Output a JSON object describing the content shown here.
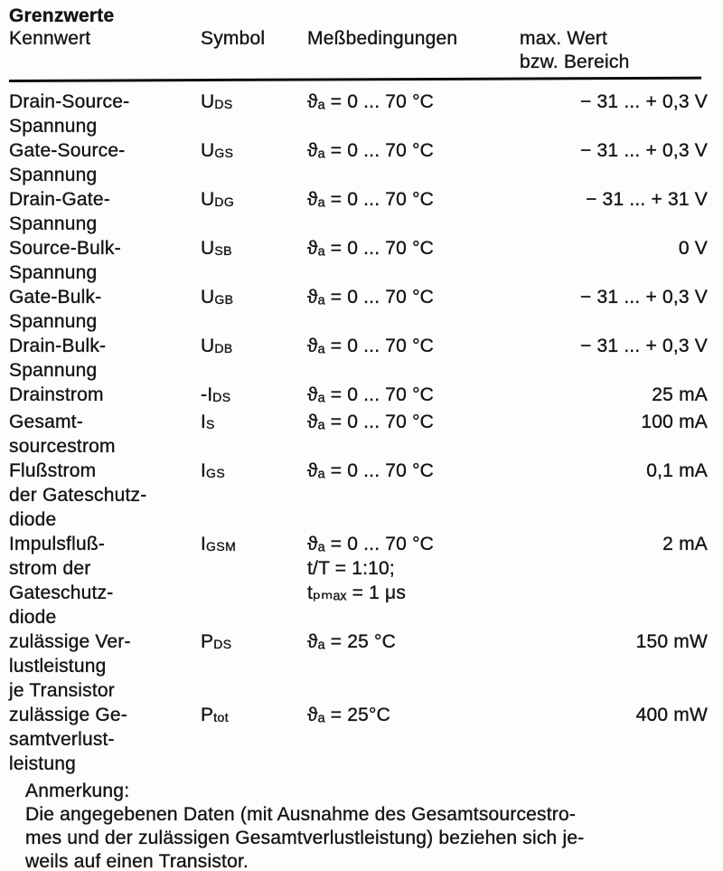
{
  "doc": {
    "title": "Grenzwerte",
    "header": {
      "kennwert": "Kennwert",
      "symbol": "Symbol",
      "conditions": "Meßbedingungen",
      "max_value": "max. Wert\nbzw. Bereich"
    },
    "table": {
      "rows": [
        {
          "name": "Drain-Source-\nSpannung",
          "symbol_main": "U",
          "symbol_sub": "DS",
          "conditions": "ϑₐ = 0 ... 70 °C",
          "value": "− 31 ... + 0,3 V"
        },
        {
          "name": "Gate-Source-\nSpannung",
          "symbol_main": "U",
          "symbol_sub": "GS",
          "conditions": "ϑₐ = 0 ... 70 °C",
          "value": "− 31 ... + 0,3 V"
        },
        {
          "name": "Drain-Gate-\nSpannung",
          "symbol_main": "U",
          "symbol_sub": "DG",
          "conditions": "ϑₐ = 0 ... 70 °C",
          "value": "− 31 ... + 31 V"
        },
        {
          "name": "Source-Bulk-\nSpannung",
          "symbol_main": "U",
          "symbol_sub": "SB",
          "conditions": "ϑₐ = 0 ... 70 °C",
          "value": "0 V"
        },
        {
          "name": "Gate-Bulk-\nSpannung",
          "symbol_main": "U",
          "symbol_sub": "GB",
          "conditions": "ϑₐ = 0 ... 70 °C",
          "value": "− 31 ... + 0,3 V"
        },
        {
          "name": "Drain-Bulk-\nSpannung",
          "symbol_main": "U",
          "symbol_sub": "DB",
          "conditions": "ϑₐ = 0 ... 70 °C",
          "value": "− 31 ... + 0,3 V"
        },
        {
          "name": "Drainstrom",
          "symbol_main": "-I",
          "symbol_sub": "DS",
          "conditions": "ϑₐ = 0 ... 70 °C",
          "value": "25 mA"
        },
        {
          "name": "Gesamt-\nsourcestrom",
          "symbol_main": "I",
          "symbol_sub": "S",
          "conditions": "ϑₐ = 0 ... 70 °C",
          "value": "100 mA"
        },
        {
          "name": "Flußstrom\nder Gateschutz-\ndiode",
          "symbol_main": "I",
          "symbol_sub": "GS",
          "conditions": "ϑₐ = 0 ... 70 °C",
          "value": "0,1 mA"
        },
        {
          "name": "Impulsfluß-\nstrom der\nGateschutz-\ndiode",
          "symbol_main": "I",
          "symbol_sub": "GSM",
          "conditions": "ϑₐ = 0 ... 70 °C\nt/T = 1:10;\ntₚₘₐₓ = 1 μs",
          "value": "2 mA"
        },
        {
          "name": "zulässige Ver-\nlustleistung\nje Transistor",
          "symbol_main": "P",
          "symbol_sub": "DS",
          "conditions": "ϑₐ = 25 °C",
          "value": "150 mW"
        },
        {
          "name": "zulässige Ge-\nsamtverlust-\nleistung",
          "symbol_main": "P",
          "symbol_sub": "tot",
          "conditions": "ϑₐ = 25°C",
          "value": "400 mW"
        }
      ]
    },
    "note": {
      "heading": "Anmerkung:",
      "body": "Die angegebenen Daten (mit Ausnahme des Gesamtsourcestro-\nmes und der zulässigen Gesamtverlustleistung) beziehen sich je-\nweils auf einen Transistor."
    }
  }
}
